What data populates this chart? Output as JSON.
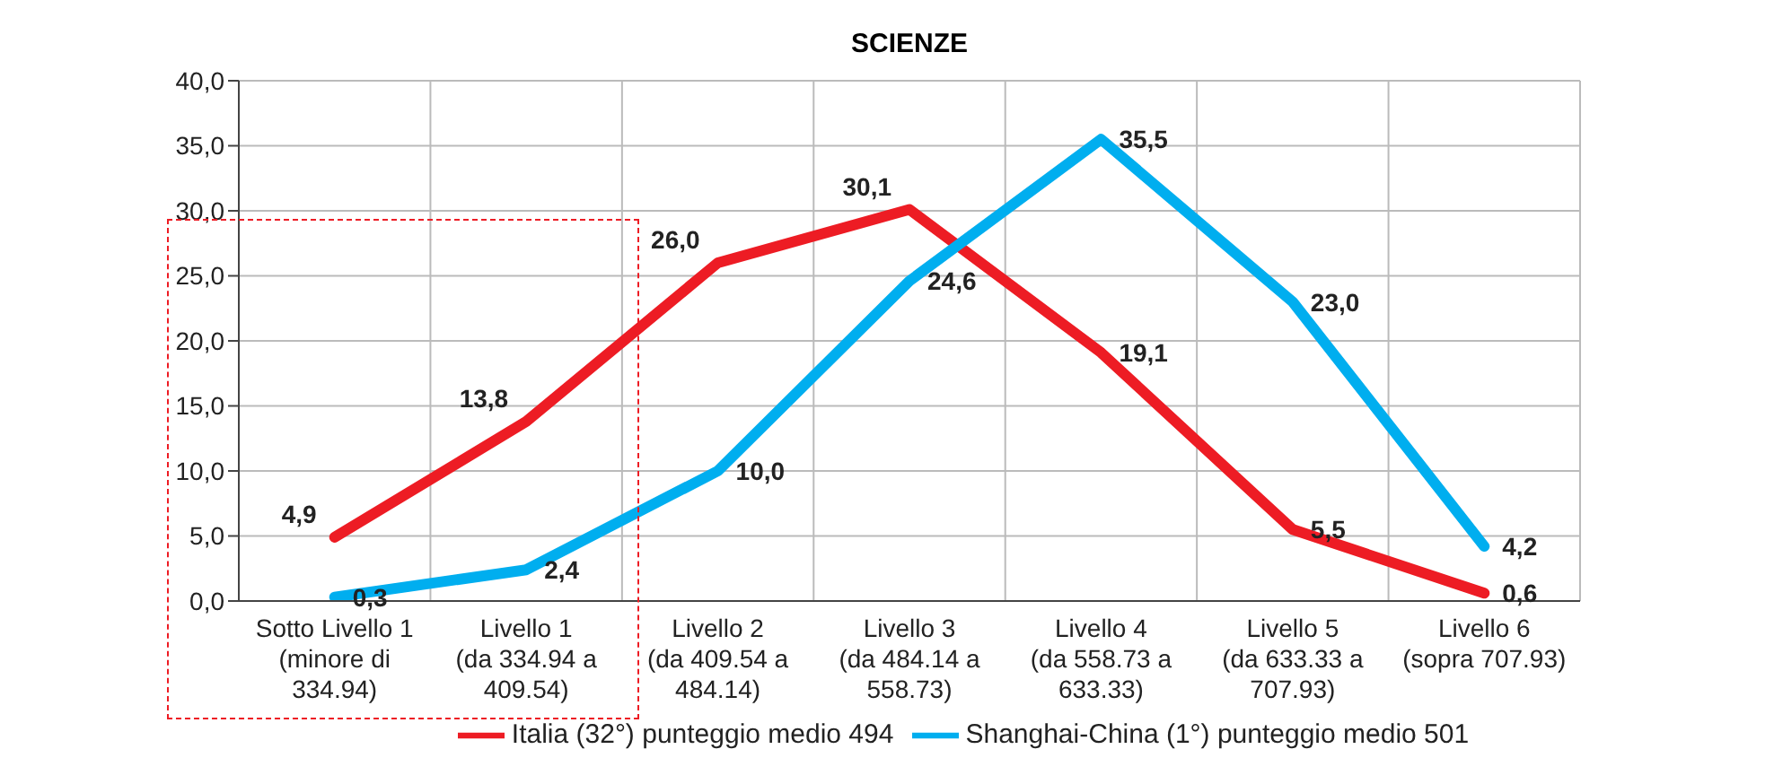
{
  "chart_data": {
    "type": "line",
    "title": "SCIENZE",
    "categories": [
      "Sotto Livello 1 (minore di 334.94)",
      "Livello 1 (da 334.94 a 409.54)",
      "Livello 2 (da 409.54 a 484.14)",
      "Livello 3 (da 484.14 a 558.73)",
      "Livello 4 (da 558.73 a 633.33)",
      "Livello 5 (da 633.33 a 707.93)",
      "Livello 6 (sopra 707.93)"
    ],
    "series": [
      {
        "name": "Italia (32°) punteggio medio 494",
        "color": "#ed1c24",
        "values": [
          4.9,
          13.8,
          26.0,
          30.1,
          19.1,
          5.5,
          0.6
        ],
        "value_labels": [
          "4,9",
          "13,8",
          "26,0",
          "30,1",
          "19,1",
          "5,5",
          "0,6"
        ]
      },
      {
        "name": "Shanghai-China (1°) punteggio medio 501",
        "color": "#00aeef",
        "values": [
          0.3,
          2.4,
          10.0,
          24.6,
          35.5,
          23.0,
          4.2
        ],
        "value_labels": [
          "0,3",
          "2,4",
          "10,0",
          "24,6",
          "35,5",
          "23,0",
          "4,2"
        ]
      }
    ],
    "ylim": [
      0,
      40
    ],
    "yticks": [
      {
        "value": 0,
        "label": "0,0"
      },
      {
        "value": 5,
        "label": "5,0"
      },
      {
        "value": 10,
        "label": "10,0"
      },
      {
        "value": 15,
        "label": "15,0"
      },
      {
        "value": 20,
        "label": "20,0"
      },
      {
        "value": 25,
        "label": "25,0"
      },
      {
        "value": 30,
        "label": "30,0"
      },
      {
        "value": 35,
        "label": "35,0"
      },
      {
        "value": 40,
        "label": "40,0"
      }
    ],
    "grid": true,
    "legend": "bottom",
    "marker": "none",
    "line_style": "solid"
  }
}
